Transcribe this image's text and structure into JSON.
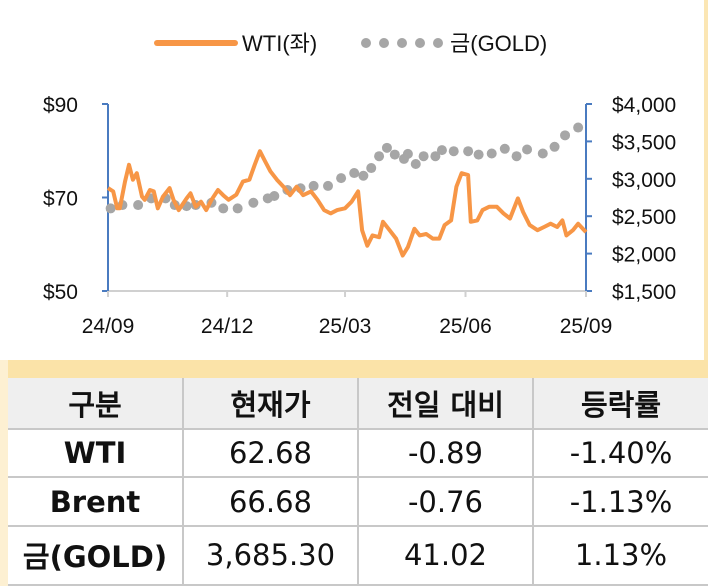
{
  "chart_data": {
    "type": "line",
    "legend": {
      "position": "top",
      "entries": [
        "WTI(좌)",
        "금(GOLD)"
      ]
    },
    "x_ticks": [
      "24/09",
      "24/12",
      "25/03",
      "25/06",
      "25/09"
    ],
    "x_tick_dates": [
      "2024-09-01",
      "2024-12-01",
      "2025-03-01",
      "2025-06-01",
      "2025-09-01"
    ],
    "y_left": {
      "range": [
        50,
        90
      ],
      "ticks": [
        "$90",
        "$70",
        "$50"
      ],
      "tick_values": [
        90,
        70,
        50
      ]
    },
    "y_right": {
      "range": [
        1500,
        4000
      ],
      "ticks": [
        "$4,000",
        "$3,500",
        "$3,000",
        "$2,500",
        "$2,000",
        "$1,500"
      ],
      "tick_values": [
        4000,
        3500,
        3000,
        2500,
        2000,
        1500
      ]
    },
    "grid": false,
    "colors": {
      "wti": "#f79646",
      "gold": "#a6a6a6",
      "axis": "#4a7bc0"
    },
    "series": [
      {
        "name": "WTI(좌)",
        "axis": "left",
        "style": "line",
        "points": [
          [
            "2024-09-01",
            72.0
          ],
          [
            "2024-09-05",
            71.3
          ],
          [
            "2024-09-08",
            67.7
          ],
          [
            "2024-09-10",
            67.7
          ],
          [
            "2024-09-14",
            73.4
          ],
          [
            "2024-09-17",
            77.0
          ],
          [
            "2024-09-20",
            73.8
          ],
          [
            "2024-09-23",
            75.2
          ],
          [
            "2024-09-27",
            70.2
          ],
          [
            "2024-09-29",
            69.5
          ],
          [
            "2024-10-03",
            71.6
          ],
          [
            "2024-10-06",
            71.3
          ],
          [
            "2024-10-09",
            67.7
          ],
          [
            "2024-10-13",
            70.2
          ],
          [
            "2024-10-18",
            72.0
          ],
          [
            "2024-10-21",
            69.5
          ],
          [
            "2024-10-25",
            67.3
          ],
          [
            "2024-10-31",
            69.8
          ],
          [
            "2024-11-03",
            70.9
          ],
          [
            "2024-11-07",
            68.0
          ],
          [
            "2024-11-11",
            69.1
          ],
          [
            "2024-11-15",
            67.3
          ],
          [
            "2024-11-19",
            69.5
          ],
          [
            "2024-11-24",
            71.6
          ],
          [
            "2024-11-28",
            70.5
          ],
          [
            "2024-12-02",
            69.5
          ],
          [
            "2024-12-08",
            70.6
          ],
          [
            "2024-12-13",
            73.4
          ],
          [
            "2024-12-18",
            73.8
          ],
          [
            "2024-12-22",
            77.0
          ],
          [
            "2024-12-26",
            79.9
          ],
          [
            "2024-12-30",
            77.7
          ],
          [
            "2025-01-03",
            75.6
          ],
          [
            "2025-01-08",
            73.8
          ],
          [
            "2025-01-13",
            72.3
          ],
          [
            "2025-01-18",
            70.5
          ],
          [
            "2025-01-23",
            72.3
          ],
          [
            "2025-01-28",
            70.5
          ],
          [
            "2025-02-03",
            71.3
          ],
          [
            "2025-02-08",
            69.5
          ],
          [
            "2025-02-13",
            67.3
          ],
          [
            "2025-02-18",
            66.6
          ],
          [
            "2025-02-23",
            67.3
          ],
          [
            "2025-03-01",
            67.7
          ],
          [
            "2025-03-06",
            69.1
          ],
          [
            "2025-03-11",
            71.3
          ],
          [
            "2025-03-14",
            63.0
          ],
          [
            "2025-03-18",
            59.7
          ],
          [
            "2025-03-22",
            61.9
          ],
          [
            "2025-03-27",
            61.5
          ],
          [
            "2025-03-30",
            64.8
          ],
          [
            "2025-04-04",
            63.0
          ],
          [
            "2025-04-09",
            61.2
          ],
          [
            "2025-04-14",
            57.6
          ],
          [
            "2025-04-18",
            59.4
          ],
          [
            "2025-04-23",
            63.3
          ],
          [
            "2025-04-27",
            61.9
          ],
          [
            "2025-05-02",
            62.2
          ],
          [
            "2025-05-07",
            61.2
          ],
          [
            "2025-05-12",
            61.2
          ],
          [
            "2025-05-16",
            64.1
          ],
          [
            "2025-05-21",
            65.1
          ],
          [
            "2025-05-25",
            72.3
          ],
          [
            "2025-05-29",
            75.2
          ],
          [
            "2025-06-03",
            74.8
          ],
          [
            "2025-06-05",
            64.8
          ],
          [
            "2025-06-10",
            65.1
          ],
          [
            "2025-06-14",
            67.3
          ],
          [
            "2025-06-19",
            68.0
          ],
          [
            "2025-06-25",
            68.0
          ],
          [
            "2025-06-30",
            66.6
          ],
          [
            "2025-07-05",
            65.5
          ],
          [
            "2025-07-11",
            69.8
          ],
          [
            "2025-07-15",
            66.9
          ],
          [
            "2025-07-20",
            64.1
          ],
          [
            "2025-07-26",
            63.0
          ],
          [
            "2025-07-31",
            63.7
          ],
          [
            "2025-08-05",
            64.4
          ],
          [
            "2025-08-10",
            63.7
          ],
          [
            "2025-08-14",
            65.1
          ],
          [
            "2025-08-17",
            61.9
          ],
          [
            "2025-08-22",
            63.0
          ],
          [
            "2025-08-26",
            64.4
          ],
          [
            "2025-09-01",
            62.6
          ]
        ]
      },
      {
        "name": "금(GOLD)",
        "axis": "right",
        "style": "dots",
        "points": [
          [
            "2024-09-03",
            2604
          ],
          [
            "2024-09-12",
            2649
          ],
          [
            "2024-09-24",
            2649
          ],
          [
            "2024-10-04",
            2739
          ],
          [
            "2024-10-15",
            2739
          ],
          [
            "2024-10-22",
            2649
          ],
          [
            "2024-10-31",
            2635
          ],
          [
            "2024-11-07",
            2649
          ],
          [
            "2024-11-19",
            2680
          ],
          [
            "2024-11-28",
            2604
          ],
          [
            "2024-12-09",
            2604
          ],
          [
            "2024-12-21",
            2680
          ],
          [
            "2025-01-01",
            2739
          ],
          [
            "2025-01-06",
            2770
          ],
          [
            "2025-01-16",
            2851
          ],
          [
            "2025-01-26",
            2874
          ],
          [
            "2025-02-05",
            2905
          ],
          [
            "2025-02-16",
            2905
          ],
          [
            "2025-02-26",
            3009
          ],
          [
            "2025-03-08",
            3077
          ],
          [
            "2025-03-15",
            3041
          ],
          [
            "2025-03-21",
            3144
          ],
          [
            "2025-03-27",
            3302
          ],
          [
            "2025-04-02",
            3414
          ],
          [
            "2025-04-08",
            3324
          ],
          [
            "2025-04-15",
            3266
          ],
          [
            "2025-04-18",
            3333
          ],
          [
            "2025-04-24",
            3198
          ],
          [
            "2025-04-30",
            3302
          ],
          [
            "2025-05-09",
            3302
          ],
          [
            "2025-05-14",
            3383
          ],
          [
            "2025-05-23",
            3369
          ],
          [
            "2025-06-03",
            3369
          ],
          [
            "2025-06-11",
            3324
          ],
          [
            "2025-06-21",
            3338
          ],
          [
            "2025-07-01",
            3401
          ],
          [
            "2025-07-10",
            3302
          ],
          [
            "2025-07-18",
            3392
          ],
          [
            "2025-07-30",
            3338
          ],
          [
            "2025-08-08",
            3428
          ],
          [
            "2025-08-16",
            3581
          ],
          [
            "2025-08-26",
            3685
          ]
        ]
      }
    ]
  },
  "table": {
    "headers": [
      "구분",
      "현재가",
      "전일 대비",
      "등락률"
    ],
    "rows": [
      [
        "WTI",
        "62.68",
        "-0.89",
        "-1.40%"
      ],
      [
        "Brent",
        "66.68",
        "-0.76",
        "-1.13%"
      ],
      [
        "금(GOLD)",
        "3,685.30",
        "41.02",
        "1.13%"
      ]
    ]
  }
}
